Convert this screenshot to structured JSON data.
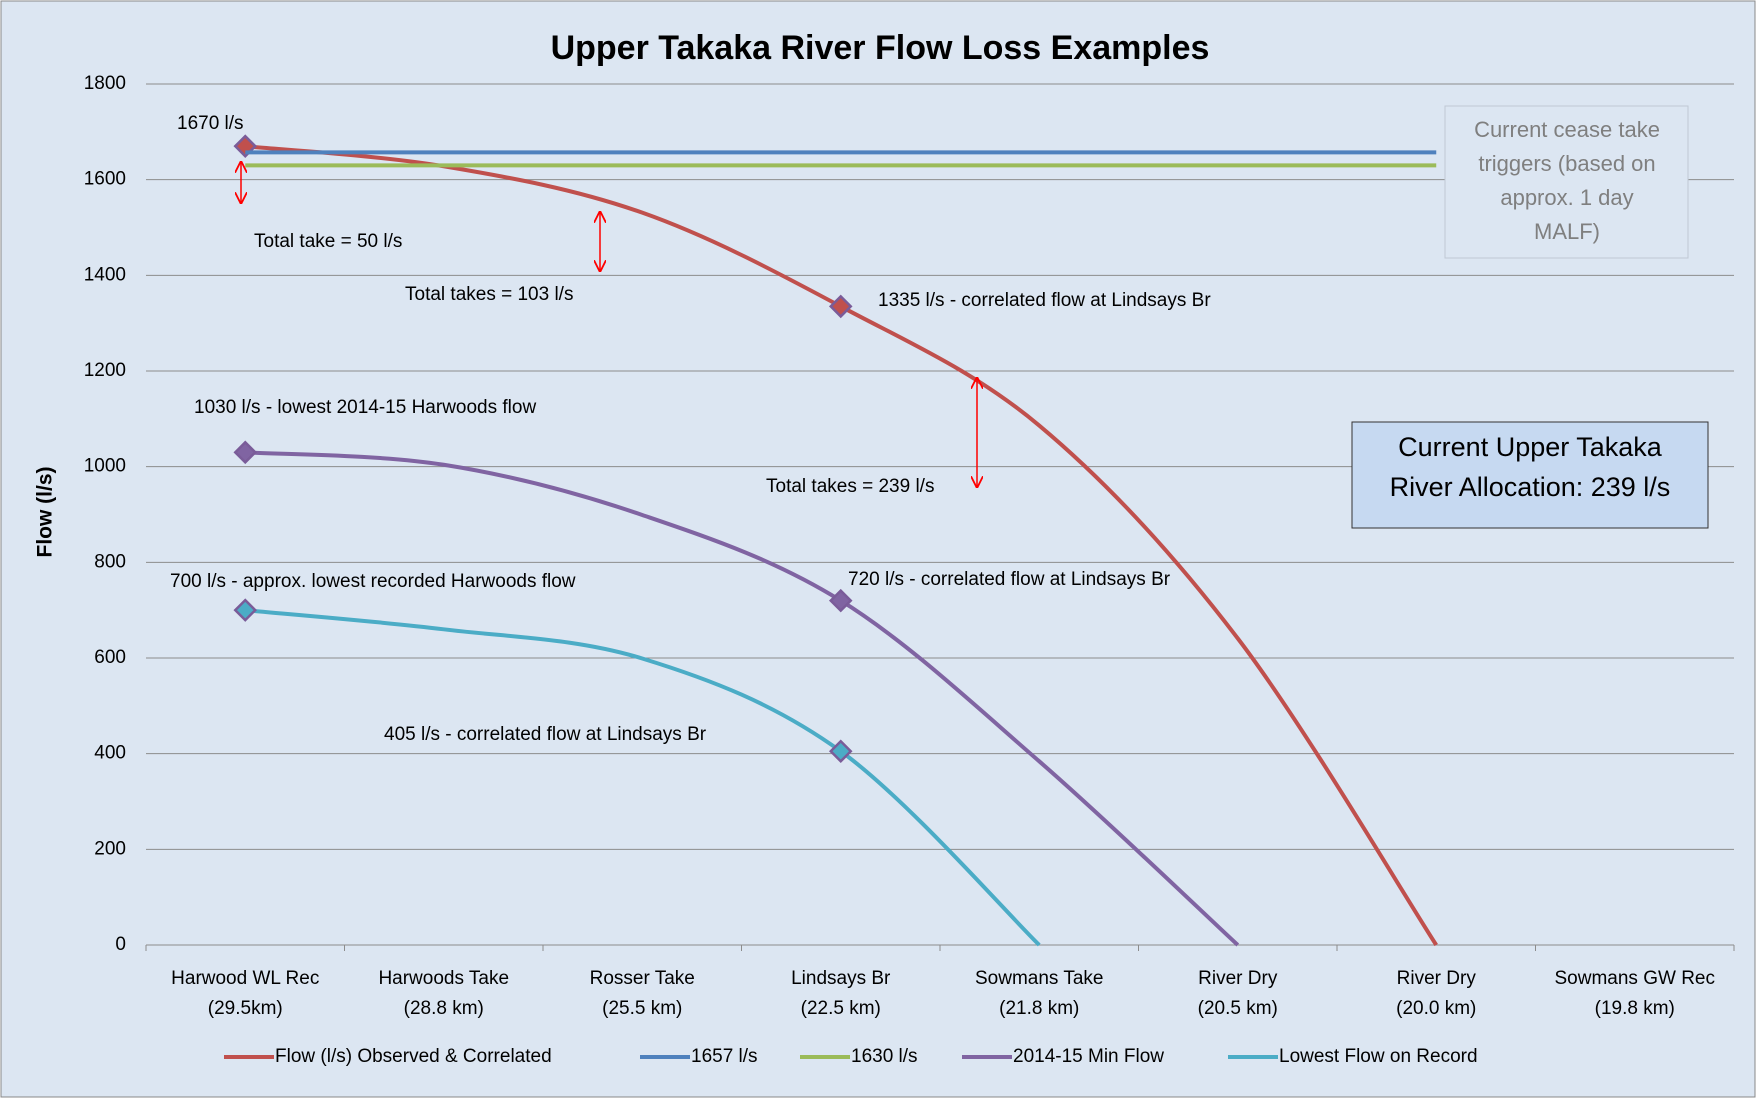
{
  "chart_data": {
    "type": "line",
    "title": "Upper Takaka River Flow Loss Examples",
    "y_label": "Flow (l/s)",
    "categories": [
      [
        "Harwood WL Rec",
        "(29.5km)"
      ],
      [
        "Harwoods Take",
        "(28.8 km)"
      ],
      [
        "Rosser Take",
        "(25.5 km)"
      ],
      [
        "Lindsays Br",
        "(22.5 km)"
      ],
      [
        "Sowmans Take",
        "(21.8 km)"
      ],
      [
        "River Dry",
        "(20.5 km)"
      ],
      [
        "River Dry",
        "(20.0 km)"
      ],
      [
        "Sowmans GW Rec",
        "(19.8 km)"
      ]
    ],
    "series": [
      {
        "name": "Flow (l/s) Observed & Correlated",
        "color": "#c0504d",
        "values": [
          1670,
          1628,
          1531,
          1335,
          1086,
          641,
          0,
          null
        ],
        "marker_points": [
          0,
          3
        ]
      },
      {
        "name": "1657 l/s",
        "color": "#4f81bd",
        "values": [
          1657,
          1657,
          1657,
          1657,
          1657,
          1657,
          1657,
          null
        ]
      },
      {
        "name": "1630 l/s",
        "color": "#9bbb59",
        "values": [
          1630,
          1630,
          1630,
          1630,
          1630,
          1630,
          1630,
          null
        ]
      },
      {
        "name": "2014-15 Min Flow",
        "color": "#8064a2",
        "values": [
          1030,
          1004,
          899,
          720,
          384,
          0,
          null,
          null
        ],
        "marker_points": [
          0,
          3
        ]
      },
      {
        "name": "Lowest Flow on Record",
        "color": "#4bacc6",
        "values": [
          700,
          660,
          599,
          405,
          0,
          null,
          null,
          null
        ],
        "marker_points": [
          0,
          3
        ]
      }
    ],
    "ylim": [
      0,
      1800
    ],
    "yticks": [
      0,
      200,
      400,
      600,
      800,
      1000,
      1200,
      1400,
      1600,
      1800
    ],
    "grid": true,
    "legend": "bottom",
    "annotations": [
      "1670 l/s",
      "Total take = 50 l/s",
      "Total takes = 103 l/s",
      "1335  l/s - correlated flow at Lindsays  Br",
      "1030 l/s - lowest  2014-15  Harwoods  flow",
      "Total takes = 239 l/s",
      "700 l/s - approx. lowest  recorded  Harwoods  flow",
      "720  l/s - correlated flow at Lindsays Br",
      "405  l/s -  correlated flow at Lindsays Br"
    ],
    "cease_box": [
      "Current cease take",
      "triggers (based on",
      "approx. 1 day",
      "MALF)"
    ],
    "allocation_box": [
      "Current Upper Takaka",
      "River Allocation:  239 l/s"
    ]
  }
}
